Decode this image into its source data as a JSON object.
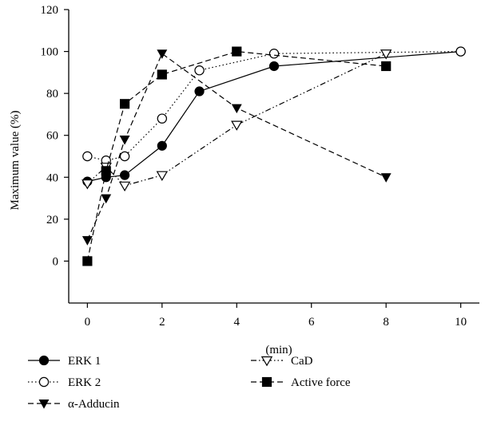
{
  "chart_data": {
    "type": "line",
    "title": "",
    "xlabel": "(min)",
    "ylabel": "Maximum value (%)",
    "xlim": [
      -0.5,
      10.5
    ],
    "ylim": [
      -20,
      120
    ],
    "xticks": [
      0,
      2,
      4,
      6,
      8,
      10
    ],
    "yticks": [
      0,
      20,
      40,
      60,
      80,
      100,
      120
    ],
    "grid": false,
    "legend_position": "bottom",
    "series": [
      {
        "name": "ERK 1",
        "marker": "filled-circle",
        "line": "solid",
        "color": "#000000",
        "x": [
          0,
          0.5,
          1,
          2,
          3,
          5,
          10
        ],
        "y": [
          38,
          40,
          41,
          55,
          81,
          93,
          100
        ]
      },
      {
        "name": "ERK 2",
        "marker": "open-circle",
        "line": "dotted",
        "color": "#000000",
        "x": [
          0,
          0.5,
          1,
          2,
          3,
          5,
          10
        ],
        "y": [
          50,
          48,
          50,
          68,
          91,
          99,
          100
        ]
      },
      {
        "name": "α-Adducin",
        "marker": "filled-triangle-down",
        "line": "dashed",
        "color": "#000000",
        "x": [
          0,
          0.5,
          1,
          2,
          4,
          8
        ],
        "y": [
          10,
          30,
          58,
          99,
          73,
          40
        ]
      },
      {
        "name": "CaD",
        "marker": "open-triangle-down",
        "line": "dash-dot-dot",
        "color": "#000000",
        "x": [
          0,
          0.5,
          1,
          2,
          4,
          8
        ],
        "y": [
          37,
          45,
          36,
          41,
          65,
          99
        ]
      },
      {
        "name": "Active force",
        "marker": "filled-square",
        "line": "dashed",
        "color": "#000000",
        "x": [
          0,
          0.5,
          1,
          2,
          4,
          8
        ],
        "y": [
          0,
          43,
          75,
          89,
          100,
          93
        ]
      }
    ]
  }
}
